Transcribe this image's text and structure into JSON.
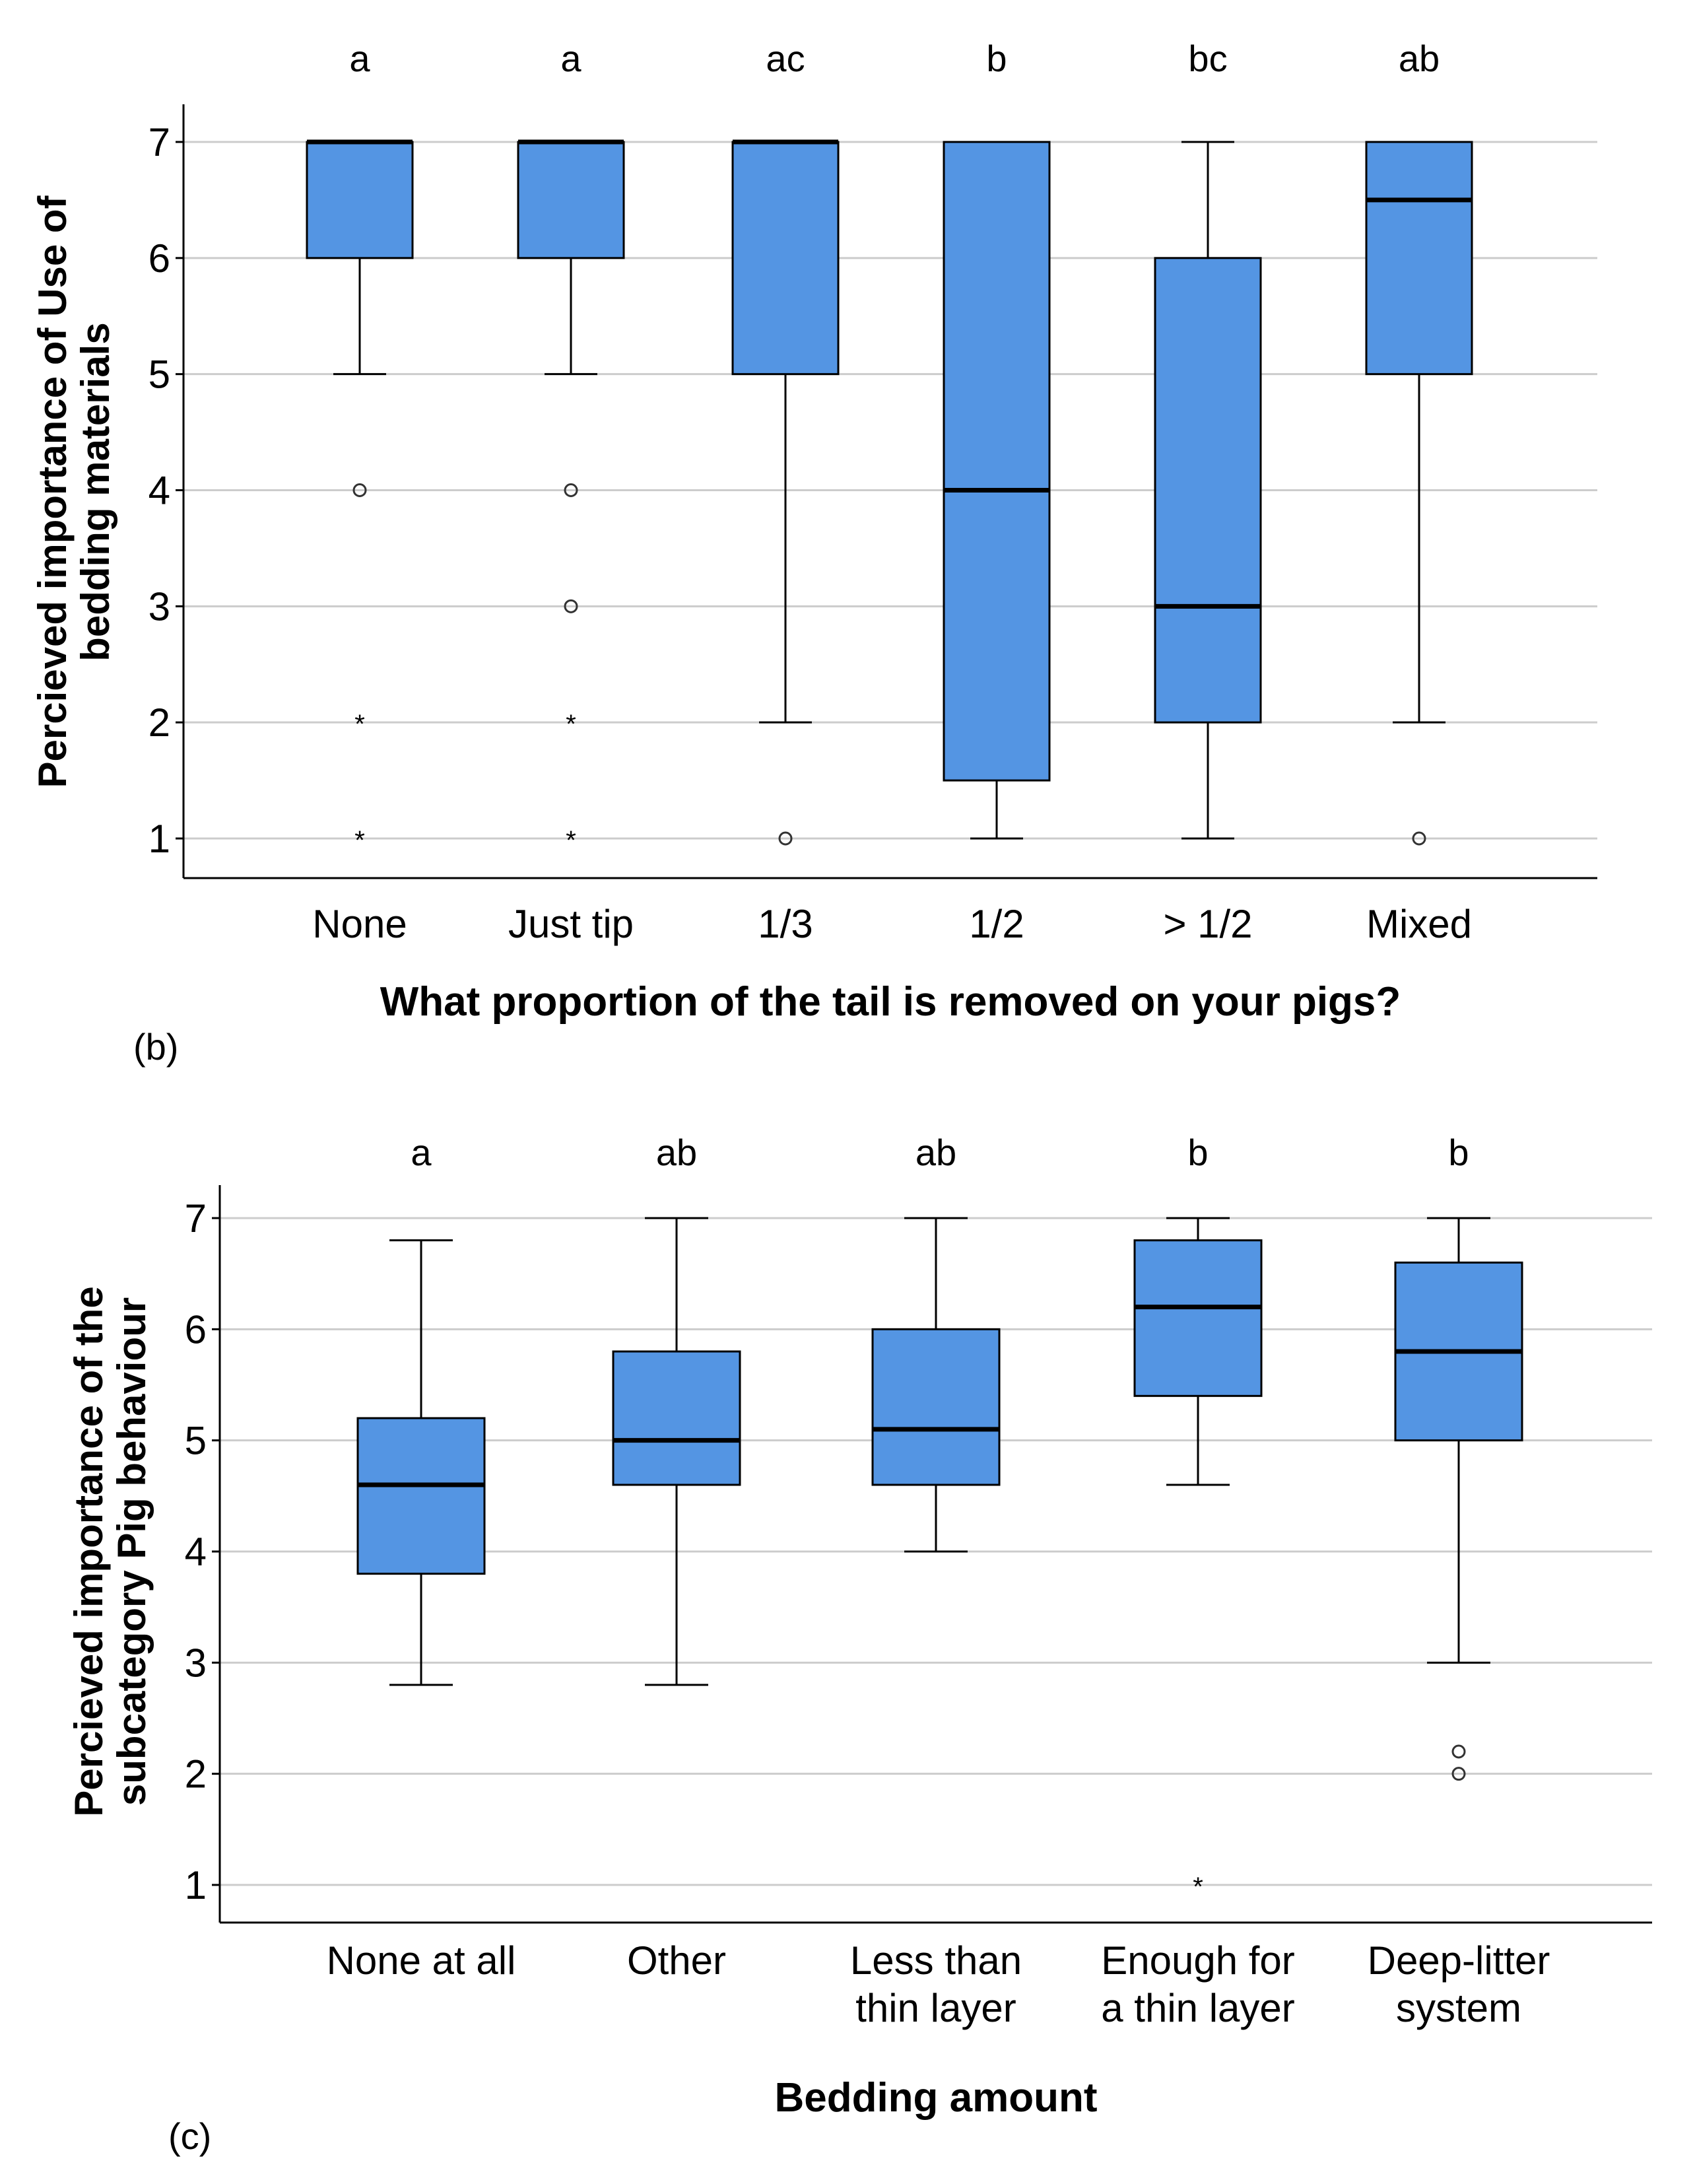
{
  "chart_data": [
    {
      "type": "box",
      "panel_label": "(b)",
      "xlabel": "What proportion of the tail is removed on your pigs?",
      "ylabel_lines": [
        "Percieved importance of Use of",
        "bedding materials"
      ],
      "ylim": [
        1,
        7
      ],
      "yticks": [
        1,
        2,
        3,
        4,
        5,
        6,
        7
      ],
      "grid": true,
      "box_color": "#5495e3",
      "categories": [
        {
          "label": [
            "None"
          ],
          "sig": "a",
          "min": 5,
          "q1": 6,
          "median": 7,
          "q3": 7,
          "max": 7,
          "outliers": [
            4
          ],
          "extremes": [
            2,
            1
          ]
        },
        {
          "label": [
            "Just tip"
          ],
          "sig": "a",
          "min": 5,
          "q1": 6,
          "median": 7,
          "q3": 7,
          "max": 7,
          "outliers": [
            4,
            3
          ],
          "extremes": [
            2,
            1
          ]
        },
        {
          "label": [
            "1/3"
          ],
          "sig": "ac",
          "min": 2,
          "q1": 5,
          "median": 7,
          "q3": 7,
          "max": 7,
          "outliers": [
            1
          ],
          "extremes": []
        },
        {
          "label": [
            "1/2"
          ],
          "sig": "b",
          "min": 1,
          "q1": 1.5,
          "median": 4,
          "q3": 7,
          "max": 7,
          "outliers": [],
          "extremes": []
        },
        {
          "label": [
            "> 1/2"
          ],
          "sig": "bc",
          "min": 1,
          "q1": 2,
          "median": 3,
          "q3": 6,
          "max": 7,
          "outliers": [],
          "extremes": []
        },
        {
          "label": [
            "Mixed"
          ],
          "sig": "ab",
          "min": 2,
          "q1": 5,
          "median": 6.5,
          "q3": 7,
          "max": 7,
          "outliers": [
            1
          ],
          "extremes": []
        }
      ]
    },
    {
      "type": "box",
      "panel_label": "(c)",
      "xlabel": "Bedding amount",
      "ylabel_lines": [
        "Percieved importance of the",
        "subcategory Pig behaviour"
      ],
      "ylim": [
        1,
        7
      ],
      "yticks": [
        1,
        2,
        3,
        4,
        5,
        6,
        7
      ],
      "grid": true,
      "box_color": "#5495e3",
      "categories": [
        {
          "label": [
            "None at all"
          ],
          "sig": "a",
          "min": 2.8,
          "q1": 3.8,
          "median": 4.6,
          "q3": 5.2,
          "max": 6.8,
          "outliers": [],
          "extremes": []
        },
        {
          "label": [
            "Other"
          ],
          "sig": "ab",
          "min": 2.8,
          "q1": 4.6,
          "median": 5.0,
          "q3": 5.8,
          "max": 7.0,
          "outliers": [],
          "extremes": []
        },
        {
          "label": [
            "Less than",
            "thin layer"
          ],
          "sig": "ab",
          "min": 4.0,
          "q1": 4.6,
          "median": 5.1,
          "q3": 6.0,
          "max": 7.0,
          "outliers": [],
          "extremes": []
        },
        {
          "label": [
            "Enough for",
            "a thin layer"
          ],
          "sig": "b",
          "min": 4.6,
          "q1": 5.4,
          "median": 6.2,
          "q3": 6.8,
          "max": 7.0,
          "outliers": [],
          "extremes": [
            1.0
          ]
        },
        {
          "label": [
            "Deep-litter",
            "system"
          ],
          "sig": "b",
          "min": 3.0,
          "q1": 5.0,
          "median": 5.8,
          "q3": 6.6,
          "max": 7.0,
          "outliers": [
            2.2,
            2.0
          ],
          "extremes": []
        }
      ]
    }
  ]
}
